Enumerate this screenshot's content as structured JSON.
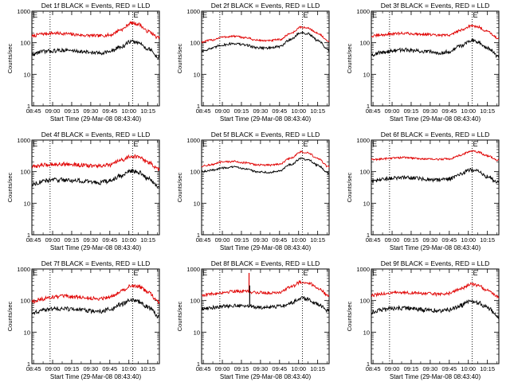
{
  "chart_data": [
    {
      "type": "line",
      "title": "Det 1f BLACK = Events, RED = LLD",
      "xlabel": "Start Time (29-Mar-08 08:43:40)",
      "ylabel": "Counts/sec",
      "yscale": "log",
      "ylim": [
        1,
        1000
      ],
      "xlim": [
        8.7278,
        10.4
      ],
      "x_ticks": [
        8.75,
        9.0,
        9.25,
        9.5,
        9.75,
        10.0,
        10.25
      ],
      "x_tick_labels": [
        "08:45",
        "09:00",
        "09:15",
        "09:30",
        "09:45",
        "10:00",
        "10:15"
      ],
      "y_ticks": [
        1,
        10,
        100,
        1000
      ],
      "y_tick_labels": [
        "1",
        "10",
        "100",
        "1000"
      ],
      "markers": [
        {
          "x": 8.729,
          "label": "E"
        },
        {
          "x": 8.9667,
          "label": ""
        },
        {
          "x": 10.05,
          "label": "E"
        }
      ],
      "series": [
        {
          "color": "#e00000",
          "x": [
            8.73,
            8.85,
            9.0,
            9.15,
            9.3,
            9.45,
            9.6,
            9.75,
            9.9,
            10.03,
            10.12,
            10.25,
            10.39
          ],
          "values": [
            160,
            190,
            200,
            195,
            180,
            170,
            165,
            175,
            260,
            420,
            390,
            230,
            145
          ],
          "noise": 0.05
        },
        {
          "color": "#000000",
          "x": [
            8.73,
            8.85,
            9.0,
            9.15,
            9.3,
            9.45,
            9.6,
            9.75,
            9.9,
            10.03,
            10.12,
            10.25,
            10.39
          ],
          "values": [
            42,
            52,
            55,
            58,
            55,
            50,
            47,
            52,
            75,
            110,
            100,
            65,
            35
          ],
          "noise": 0.06
        }
      ]
    },
    {
      "type": "line",
      "title": "Det 2f BLACK = Events, RED = LLD",
      "xlabel": "Start Time (29-Mar-08 08:43:40)",
      "ylabel": "Counts/sec",
      "yscale": "log",
      "ylim": [
        1,
        1000
      ],
      "xlim": [
        8.7278,
        10.4
      ],
      "x_ticks": [
        8.75,
        9.0,
        9.25,
        9.5,
        9.75,
        10.0,
        10.25
      ],
      "x_tick_labels": [
        "08:45",
        "09:00",
        "09:15",
        "09:30",
        "09:45",
        "10:00",
        "10:15"
      ],
      "y_ticks": [
        1,
        10,
        100,
        1000
      ],
      "y_tick_labels": [
        "1",
        "10",
        "100",
        "1000"
      ],
      "markers": [
        {
          "x": 8.729,
          "label": "E"
        },
        {
          "x": 8.9667,
          "label": ""
        },
        {
          "x": 10.05,
          "label": "E"
        }
      ],
      "series": [
        {
          "color": "#e00000",
          "x": [
            8.73,
            8.85,
            9.0,
            9.15,
            9.3,
            9.45,
            9.6,
            9.75,
            9.9,
            10.03,
            10.12,
            10.25,
            10.39
          ],
          "values": [
            105,
            120,
            150,
            160,
            145,
            120,
            115,
            125,
            200,
            310,
            290,
            200,
            110
          ],
          "noise": 0.03
        },
        {
          "color": "#000000",
          "x": [
            8.73,
            8.85,
            9.0,
            9.15,
            9.3,
            9.45,
            9.6,
            9.75,
            9.9,
            10.03,
            10.12,
            10.25,
            10.39
          ],
          "values": [
            55,
            65,
            85,
            95,
            85,
            70,
            68,
            75,
            130,
            210,
            190,
            120,
            60
          ],
          "noise": 0.04
        }
      ]
    },
    {
      "type": "line",
      "title": "Det 3f BLACK = Events, RED = LLD",
      "xlabel": "Start Time (29-Mar-08 08:43:40)",
      "ylabel": "Counts/sec",
      "yscale": "log",
      "ylim": [
        1,
        1000
      ],
      "xlim": [
        8.7278,
        10.4
      ],
      "x_ticks": [
        8.75,
        9.0,
        9.25,
        9.5,
        9.75,
        10.0,
        10.25
      ],
      "x_tick_labels": [
        "08:45",
        "09:00",
        "09:15",
        "09:30",
        "09:45",
        "10:00",
        "10:15"
      ],
      "y_ticks": [
        1,
        10,
        100,
        1000
      ],
      "y_tick_labels": [
        "1",
        "10",
        "100",
        "1000"
      ],
      "markers": [
        {
          "x": 8.729,
          "label": "E"
        },
        {
          "x": 8.9667,
          "label": ""
        },
        {
          "x": 10.05,
          "label": "E"
        }
      ],
      "series": [
        {
          "color": "#e00000",
          "x": [
            8.73,
            8.85,
            9.0,
            9.15,
            9.3,
            9.45,
            9.6,
            9.75,
            9.9,
            10.03,
            10.12,
            10.25,
            10.39
          ],
          "values": [
            160,
            175,
            190,
            200,
            190,
            185,
            170,
            175,
            250,
            340,
            320,
            230,
            140
          ],
          "noise": 0.04
        },
        {
          "color": "#000000",
          "x": [
            8.73,
            8.85,
            9.0,
            9.15,
            9.3,
            9.45,
            9.6,
            9.75,
            9.9,
            10.03,
            10.12,
            10.25,
            10.39
          ],
          "values": [
            42,
            48,
            55,
            60,
            55,
            52,
            48,
            52,
            80,
            120,
            110,
            70,
            38
          ],
          "noise": 0.06
        }
      ]
    },
    {
      "type": "line",
      "title": "Det 4f BLACK = Events, RED = LLD",
      "xlabel": "Start Time (29-Mar-08 08:43:40)",
      "ylabel": "Counts/sec",
      "yscale": "log",
      "ylim": [
        1,
        1000
      ],
      "xlim": [
        8.7278,
        10.4
      ],
      "x_ticks": [
        8.75,
        9.0,
        9.25,
        9.5,
        9.75,
        10.0,
        10.25
      ],
      "x_tick_labels": [
        "08:45",
        "09:00",
        "09:15",
        "09:30",
        "09:45",
        "10:00",
        "10:15"
      ],
      "y_ticks": [
        1,
        10,
        100,
        1000
      ],
      "y_tick_labels": [
        "1",
        "10",
        "100",
        "1000"
      ],
      "markers": [
        {
          "x": 8.729,
          "label": "E"
        },
        {
          "x": 8.9667,
          "label": ""
        },
        {
          "x": 10.05,
          "label": "E"
        }
      ],
      "series": [
        {
          "color": "#e00000",
          "x": [
            8.73,
            8.85,
            9.0,
            9.15,
            9.3,
            9.45,
            9.6,
            9.75,
            9.9,
            10.03,
            10.12,
            10.25,
            10.39
          ],
          "values": [
            140,
            160,
            170,
            175,
            165,
            155,
            150,
            160,
            230,
            310,
            290,
            200,
            120
          ],
          "noise": 0.06
        },
        {
          "color": "#000000",
          "x": [
            8.73,
            8.85,
            9.0,
            9.15,
            9.3,
            9.45,
            9.6,
            9.75,
            9.9,
            10.03,
            10.12,
            10.25,
            10.39
          ],
          "values": [
            40,
            48,
            55,
            55,
            52,
            48,
            45,
            50,
            75,
            105,
            95,
            62,
            35
          ],
          "noise": 0.07
        }
      ]
    },
    {
      "type": "line",
      "title": "Det 5f BLACK = Events, RED = LLD",
      "xlabel": "Start Time (29-Mar-08 08:43:40)",
      "ylabel": "Counts/sec",
      "yscale": "log",
      "ylim": [
        1,
        1000
      ],
      "xlim": [
        8.7278,
        10.4
      ],
      "x_ticks": [
        8.75,
        9.0,
        9.25,
        9.5,
        9.75,
        10.0,
        10.25
      ],
      "x_tick_labels": [
        "08:45",
        "09:00",
        "09:15",
        "09:30",
        "09:45",
        "10:00",
        "10:15"
      ],
      "y_ticks": [
        1,
        10,
        100,
        1000
      ],
      "y_tick_labels": [
        "1",
        "10",
        "100",
        "1000"
      ],
      "markers": [
        {
          "x": 8.729,
          "label": "E"
        },
        {
          "x": 8.9667,
          "label": ""
        },
        {
          "x": 10.05,
          "label": "E"
        }
      ],
      "series": [
        {
          "color": "#e00000",
          "x": [
            8.73,
            8.85,
            9.0,
            9.15,
            9.3,
            9.45,
            9.6,
            9.75,
            9.9,
            10.03,
            10.12,
            10.25,
            10.39
          ],
          "values": [
            150,
            165,
            200,
            210,
            190,
            165,
            160,
            175,
            270,
            420,
            390,
            260,
            145
          ],
          "noise": 0.03
        },
        {
          "color": "#000000",
          "x": [
            8.73,
            8.85,
            9.0,
            9.15,
            9.3,
            9.45,
            9.6,
            9.75,
            9.9,
            10.03,
            10.12,
            10.25,
            10.39
          ],
          "values": [
            100,
            110,
            130,
            140,
            125,
            100,
            95,
            105,
            170,
            260,
            240,
            160,
            90
          ],
          "noise": 0.03
        }
      ]
    },
    {
      "type": "line",
      "title": "Det 6f BLACK = Events, RED = LLD",
      "xlabel": "Start Time (29-Mar-08 08:43:40)",
      "ylabel": "Counts/sec",
      "yscale": "log",
      "ylim": [
        1,
        1000
      ],
      "xlim": [
        8.7278,
        10.4
      ],
      "x_ticks": [
        8.75,
        9.0,
        9.25,
        9.5,
        9.75,
        10.0,
        10.25
      ],
      "x_tick_labels": [
        "08:45",
        "09:00",
        "09:15",
        "09:30",
        "09:45",
        "10:00",
        "10:15"
      ],
      "y_ticks": [
        1,
        10,
        100,
        1000
      ],
      "y_tick_labels": [
        "1",
        "10",
        "100",
        "1000"
      ],
      "markers": [
        {
          "x": 8.729,
          "label": "E"
        },
        {
          "x": 8.9667,
          "label": ""
        },
        {
          "x": 10.05,
          "label": "E"
        }
      ],
      "series": [
        {
          "color": "#e00000",
          "x": [
            8.73,
            8.85,
            9.0,
            9.15,
            9.3,
            9.45,
            9.6,
            9.75,
            9.9,
            10.03,
            10.12,
            10.25,
            10.39
          ],
          "values": [
            240,
            250,
            270,
            280,
            265,
            250,
            245,
            255,
            330,
            450,
            420,
            320,
            230
          ],
          "noise": 0.03
        },
        {
          "color": "#000000",
          "x": [
            8.73,
            8.85,
            9.0,
            9.15,
            9.3,
            9.45,
            9.6,
            9.75,
            9.9,
            10.03,
            10.12,
            10.25,
            10.39
          ],
          "values": [
            48,
            55,
            62,
            65,
            62,
            57,
            55,
            60,
            85,
            115,
            105,
            70,
            45
          ],
          "noise": 0.06
        }
      ]
    },
    {
      "type": "line",
      "title": "Det 7f BLACK = Events, RED = LLD",
      "xlabel": "Start Time (29-Mar-08 08:43:40)",
      "ylabel": "Counts/sec",
      "yscale": "log",
      "ylim": [
        1,
        1000
      ],
      "xlim": [
        8.7278,
        10.4
      ],
      "x_ticks": [
        8.75,
        9.0,
        9.25,
        9.5,
        9.75,
        10.0,
        10.25
      ],
      "x_tick_labels": [
        "08:45",
        "09:00",
        "09:15",
        "09:30",
        "09:45",
        "10:00",
        "10:15"
      ],
      "y_ticks": [
        1,
        10,
        100,
        1000
      ],
      "y_tick_labels": [
        "1",
        "10",
        "100",
        "1000"
      ],
      "markers": [
        {
          "x": 8.729,
          "label": "E"
        },
        {
          "x": 8.9667,
          "label": ""
        },
        {
          "x": 10.05,
          "label": "E"
        }
      ],
      "series": [
        {
          "color": "#e00000",
          "x": [
            8.73,
            8.85,
            9.0,
            9.15,
            9.3,
            9.45,
            9.6,
            9.75,
            9.9,
            10.03,
            10.12,
            10.25,
            10.39
          ],
          "values": [
            95,
            110,
            130,
            135,
            130,
            120,
            115,
            130,
            200,
            300,
            280,
            190,
            90
          ],
          "noise": 0.06
        },
        {
          "color": "#000000",
          "x": [
            8.73,
            8.85,
            9.0,
            9.15,
            9.3,
            9.45,
            9.6,
            9.75,
            9.9,
            10.03,
            10.12,
            10.25,
            10.39
          ],
          "values": [
            40,
            48,
            55,
            55,
            52,
            48,
            45,
            52,
            75,
            105,
            95,
            62,
            32
          ],
          "noise": 0.07
        }
      ]
    },
    {
      "type": "line",
      "title": "Det 8f BLACK = Events, RED = LLD",
      "xlabel": "Start Time (29-Mar-08 08:43:40)",
      "ylabel": "Counts/sec",
      "yscale": "log",
      "ylim": [
        1,
        1000
      ],
      "xlim": [
        8.7278,
        10.4
      ],
      "x_ticks": [
        8.75,
        9.0,
        9.25,
        9.5,
        9.75,
        10.0,
        10.25
      ],
      "x_tick_labels": [
        "08:45",
        "09:00",
        "09:15",
        "09:30",
        "09:45",
        "10:00",
        "10:15"
      ],
      "y_ticks": [
        1,
        10,
        100,
        1000
      ],
      "y_tick_labels": [
        "1",
        "10",
        "100",
        "1000"
      ],
      "markers": [
        {
          "x": 8.729,
          "label": "E"
        },
        {
          "x": 8.9667,
          "label": ""
        },
        {
          "x": 10.05,
          "label": "E"
        }
      ],
      "spikes": [
        {
          "x": 9.35,
          "red": 750,
          "black": 300
        }
      ],
      "series": [
        {
          "color": "#e00000",
          "x": [
            8.73,
            8.85,
            9.0,
            9.15,
            9.3,
            9.45,
            9.6,
            9.75,
            9.9,
            10.03,
            10.12,
            10.25,
            10.39
          ],
          "values": [
            150,
            160,
            180,
            200,
            195,
            180,
            175,
            185,
            270,
            390,
            370,
            250,
            150
          ],
          "noise": 0.05
        },
        {
          "color": "#000000",
          "x": [
            8.73,
            8.85,
            9.0,
            9.15,
            9.3,
            9.45,
            9.6,
            9.75,
            9.9,
            10.03,
            10.12,
            10.25,
            10.39
          ],
          "values": [
            55,
            60,
            65,
            70,
            68,
            62,
            60,
            65,
            85,
            120,
            110,
            75,
            48
          ],
          "noise": 0.06
        }
      ]
    },
    {
      "type": "line",
      "title": "Det 9f BLACK = Events, RED = LLD",
      "xlabel": "Start Time (29-Mar-08 08:43:40)",
      "ylabel": "Counts/sec",
      "yscale": "log",
      "ylim": [
        1,
        1000
      ],
      "xlim": [
        8.7278,
        10.4
      ],
      "x_ticks": [
        8.75,
        9.0,
        9.25,
        9.5,
        9.75,
        10.0,
        10.25
      ],
      "x_tick_labels": [
        "08:45",
        "09:00",
        "09:15",
        "09:30",
        "09:45",
        "10:00",
        "10:15"
      ],
      "y_ticks": [
        1,
        10,
        100,
        1000
      ],
      "y_tick_labels": [
        "1",
        "10",
        "100",
        "1000"
      ],
      "markers": [
        {
          "x": 8.729,
          "label": "E"
        },
        {
          "x": 8.9667,
          "label": ""
        },
        {
          "x": 10.05,
          "label": "E"
        }
      ],
      "series": [
        {
          "color": "#e00000",
          "x": [
            8.73,
            8.85,
            9.0,
            9.15,
            9.3,
            9.45,
            9.6,
            9.75,
            9.9,
            10.03,
            10.12,
            10.25,
            10.39
          ],
          "values": [
            145,
            160,
            175,
            180,
            175,
            165,
            160,
            170,
            240,
            330,
            310,
            210,
            130
          ],
          "noise": 0.05
        },
        {
          "color": "#000000",
          "x": [
            8.73,
            8.85,
            9.0,
            9.15,
            9.3,
            9.45,
            9.6,
            9.75,
            9.9,
            10.03,
            10.12,
            10.25,
            10.39
          ],
          "values": [
            42,
            50,
            56,
            58,
            55,
            50,
            48,
            52,
            70,
            95,
            88,
            60,
            32
          ],
          "noise": 0.07
        }
      ]
    }
  ]
}
